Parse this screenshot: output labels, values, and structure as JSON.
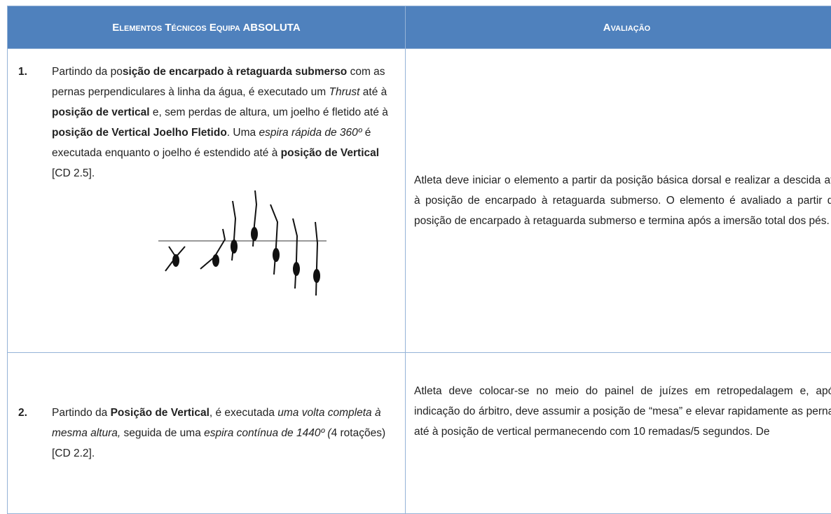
{
  "header": {
    "columns": [
      "Elementos Técnicos Equipa ABSOLUTA",
      "Avaliação"
    ]
  },
  "rows": [
    {
      "number": "1.",
      "content": [
        "Partindo da po",
        {
          "text": "sição de encarpado à retaguarda submerso",
          "style": "bold"
        },
        " com as pernas perpendiculares à linha da água, é executado um ",
        {
          "text": "Thrust",
          "style": "italic"
        },
        " até à ",
        {
          "text": "posição de vertical",
          "style": "bold"
        },
        " e, sem perdas de altura, um joelho é fletido até à ",
        {
          "text": "posição de Vertical Joelho Fletido",
          "style": "bold"
        },
        ". Uma ",
        {
          "text": "espira rápida de 360º",
          "style": "italic"
        },
        " é executada enquanto o joelho é estendido até à ",
        {
          "text": "posição de Vertical",
          "style": "bold"
        },
        " [CD 2.5]."
      ],
      "evaluation": "Atleta deve iniciar o elemento a partir da posição básica dorsal e realizar a descida até à posição de encarpado à retaguarda submerso. O elemento é avaliado a partir da posição de encarpado à retaguarda submerso e termina após a imersão total dos pés."
    },
    {
      "number": "2.",
      "content": [
        "Partindo da ",
        {
          "text": "Posição de Vertical",
          "style": "bold"
        },
        ", é executada ",
        {
          "text": "uma volta completa à mesma altura,",
          "style": "italic"
        },
        " seguida de uma ",
        {
          "text": "espira contínua de 1440º (",
          "style": "italic"
        },
        "4 rotações) [CD 2.2]."
      ],
      "evaluation": "Atleta deve colocar-se no meio do painel de juízes em retropedalagem e, após indicação do árbitro, deve assumir a posição de “mesa” e elevar rapidamente as pernas até à posição de vertical permanecendo com 10 remadas/5 segundos. De"
    }
  ]
}
